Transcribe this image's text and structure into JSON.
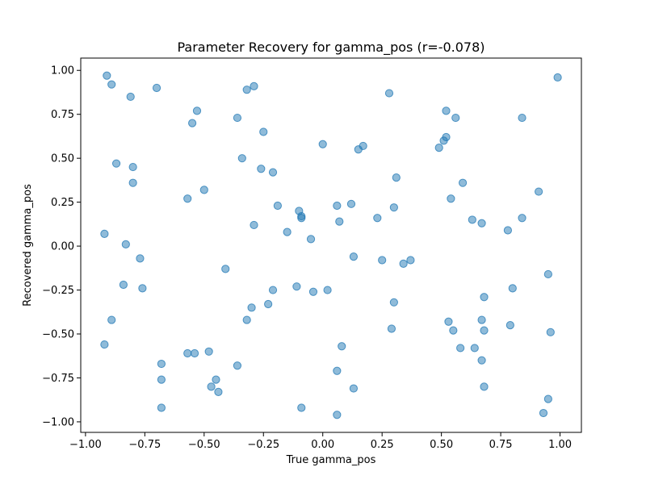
{
  "chart_data": {
    "type": "scatter",
    "title": "Parameter Recovery for gamma_pos (r=-0.078)",
    "xlabel": "True gamma_pos",
    "ylabel": "Recovered gamma_pos",
    "xlim": [
      -1.02,
      1.09
    ],
    "ylim": [
      -1.06,
      1.07
    ],
    "xticks": [
      -1.0,
      -0.75,
      -0.5,
      -0.25,
      0.0,
      0.25,
      0.5,
      0.75,
      1.0
    ],
    "xtick_labels": [
      "−1.00",
      "−0.75",
      "−0.50",
      "−0.25",
      "0.00",
      "0.25",
      "0.50",
      "0.75",
      "1.00"
    ],
    "yticks": [
      -1.0,
      -0.75,
      -0.5,
      -0.25,
      0.0,
      0.25,
      0.5,
      0.75,
      1.0
    ],
    "ytick_labels": [
      "−1.00",
      "−0.75",
      "−0.50",
      "−0.25",
      "0.00",
      "0.25",
      "0.50",
      "0.75",
      "1.00"
    ],
    "grid": false,
    "marker_color": "#1f77b4",
    "marker_alpha": 0.5,
    "points": [
      {
        "x": -0.91,
        "y": 0.97
      },
      {
        "x": -0.89,
        "y": 0.92
      },
      {
        "x": -0.81,
        "y": 0.85
      },
      {
        "x": -0.7,
        "y": 0.9
      },
      {
        "x": -0.32,
        "y": 0.89
      },
      {
        "x": -0.29,
        "y": 0.91
      },
      {
        "x": 0.28,
        "y": 0.87
      },
      {
        "x": 0.99,
        "y": 0.96
      },
      {
        "x": -0.53,
        "y": 0.77
      },
      {
        "x": -0.55,
        "y": 0.7
      },
      {
        "x": -0.36,
        "y": 0.73
      },
      {
        "x": -0.25,
        "y": 0.65
      },
      {
        "x": 0.52,
        "y": 0.77
      },
      {
        "x": 0.56,
        "y": 0.73
      },
      {
        "x": 0.84,
        "y": 0.73
      },
      {
        "x": 0.52,
        "y": 0.62
      },
      {
        "x": 0.51,
        "y": 0.6
      },
      {
        "x": 0.49,
        "y": 0.56
      },
      {
        "x": 0.0,
        "y": 0.58
      },
      {
        "x": 0.15,
        "y": 0.55
      },
      {
        "x": 0.17,
        "y": 0.57
      },
      {
        "x": -0.34,
        "y": 0.5
      },
      {
        "x": -0.87,
        "y": 0.47
      },
      {
        "x": -0.8,
        "y": 0.45
      },
      {
        "x": -0.26,
        "y": 0.44
      },
      {
        "x": -0.21,
        "y": 0.42
      },
      {
        "x": 0.31,
        "y": 0.39
      },
      {
        "x": -0.8,
        "y": 0.36
      },
      {
        "x": -0.5,
        "y": 0.32
      },
      {
        "x": 0.59,
        "y": 0.36
      },
      {
        "x": 0.91,
        "y": 0.31
      },
      {
        "x": -0.57,
        "y": 0.27
      },
      {
        "x": 0.54,
        "y": 0.27
      },
      {
        "x": -0.19,
        "y": 0.23
      },
      {
        "x": 0.06,
        "y": 0.23
      },
      {
        "x": 0.12,
        "y": 0.24
      },
      {
        "x": 0.3,
        "y": 0.22
      },
      {
        "x": -0.1,
        "y": 0.2
      },
      {
        "x": -0.09,
        "y": 0.17
      },
      {
        "x": -0.09,
        "y": 0.16
      },
      {
        "x": 0.23,
        "y": 0.16
      },
      {
        "x": 0.63,
        "y": 0.15
      },
      {
        "x": 0.67,
        "y": 0.13
      },
      {
        "x": 0.84,
        "y": 0.16
      },
      {
        "x": 0.07,
        "y": 0.14
      },
      {
        "x": -0.29,
        "y": 0.12
      },
      {
        "x": -0.15,
        "y": 0.08
      },
      {
        "x": 0.78,
        "y": 0.09
      },
      {
        "x": -0.92,
        "y": 0.07
      },
      {
        "x": -0.83,
        "y": 0.01
      },
      {
        "x": -0.05,
        "y": 0.04
      },
      {
        "x": -0.77,
        "y": -0.07
      },
      {
        "x": 0.13,
        "y": -0.06
      },
      {
        "x": 0.25,
        "y": -0.08
      },
      {
        "x": 0.34,
        "y": -0.1
      },
      {
        "x": 0.37,
        "y": -0.08
      },
      {
        "x": -0.41,
        "y": -0.13
      },
      {
        "x": 0.95,
        "y": -0.16
      },
      {
        "x": -0.84,
        "y": -0.22
      },
      {
        "x": -0.76,
        "y": -0.24
      },
      {
        "x": -0.11,
        "y": -0.23
      },
      {
        "x": -0.21,
        "y": -0.25
      },
      {
        "x": -0.04,
        "y": -0.26
      },
      {
        "x": 0.02,
        "y": -0.25
      },
      {
        "x": 0.8,
        "y": -0.24
      },
      {
        "x": 0.68,
        "y": -0.29
      },
      {
        "x": -0.23,
        "y": -0.33
      },
      {
        "x": -0.3,
        "y": -0.35
      },
      {
        "x": 0.3,
        "y": -0.32
      },
      {
        "x": -0.89,
        "y": -0.42
      },
      {
        "x": -0.32,
        "y": -0.42
      },
      {
        "x": 0.53,
        "y": -0.43
      },
      {
        "x": 0.55,
        "y": -0.48
      },
      {
        "x": 0.67,
        "y": -0.42
      },
      {
        "x": 0.79,
        "y": -0.45
      },
      {
        "x": 0.29,
        "y": -0.47
      },
      {
        "x": 0.68,
        "y": -0.48
      },
      {
        "x": 0.96,
        "y": -0.49
      },
      {
        "x": -0.92,
        "y": -0.56
      },
      {
        "x": 0.08,
        "y": -0.57
      },
      {
        "x": 0.58,
        "y": -0.58
      },
      {
        "x": 0.64,
        "y": -0.58
      },
      {
        "x": -0.57,
        "y": -0.61
      },
      {
        "x": -0.54,
        "y": -0.61
      },
      {
        "x": -0.48,
        "y": -0.6
      },
      {
        "x": -0.68,
        "y": -0.67
      },
      {
        "x": -0.36,
        "y": -0.68
      },
      {
        "x": 0.67,
        "y": -0.65
      },
      {
        "x": 0.06,
        "y": -0.71
      },
      {
        "x": -0.68,
        "y": -0.76
      },
      {
        "x": -0.45,
        "y": -0.76
      },
      {
        "x": -0.47,
        "y": -0.8
      },
      {
        "x": -0.44,
        "y": -0.83
      },
      {
        "x": 0.68,
        "y": -0.8
      },
      {
        "x": 0.13,
        "y": -0.81
      },
      {
        "x": 0.95,
        "y": -0.87
      },
      {
        "x": -0.68,
        "y": -0.92
      },
      {
        "x": -0.09,
        "y": -0.92
      },
      {
        "x": 0.06,
        "y": -0.96
      },
      {
        "x": 0.93,
        "y": -0.95
      }
    ]
  }
}
